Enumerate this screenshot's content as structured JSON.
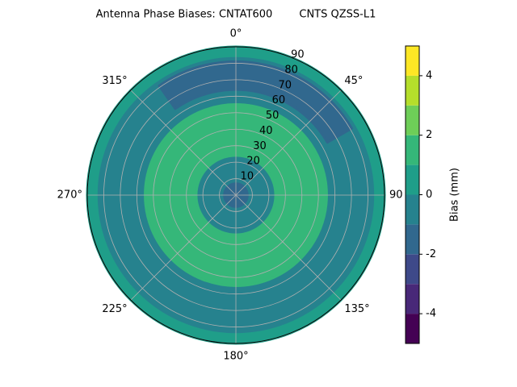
{
  "chart_data": {
    "type": "polar_contour",
    "title": "Antenna Phase Biases: CNTAT600        CNTS QZSS-L1",
    "rlim": [
      0,
      90
    ],
    "rticks": [
      10,
      20,
      30,
      40,
      50,
      60,
      70,
      80,
      90
    ],
    "thetaticks": [
      {
        "value": 0,
        "label": "0°"
      },
      {
        "value": 45,
        "label": "45°"
      },
      {
        "value": 90,
        "label": "90"
      },
      {
        "value": 135,
        "label": "135°"
      },
      {
        "value": 180,
        "label": "180°"
      },
      {
        "value": 225,
        "label": "225°"
      },
      {
        "value": 270,
        "label": "270°"
      },
      {
        "value": 315,
        "label": "315°"
      }
    ],
    "grid": true,
    "levels": [
      -5,
      -4,
      -3,
      -2,
      -1,
      0,
      1,
      2,
      3,
      4,
      5
    ],
    "colors": [
      "#440154",
      "#482878",
      "#3e4989",
      "#31688e",
      "#26828e",
      "#1f9e89",
      "#35b779",
      "#6ece58",
      "#b5de2b",
      "#fde725"
    ],
    "regions": [
      {
        "level": 0,
        "r": [
          0,
          90
        ],
        "theta": [
          0,
          360
        ]
      },
      {
        "level": -1,
        "r": [
          0,
          83
        ],
        "theta": [
          0,
          360
        ]
      },
      {
        "level": -2,
        "r": [
          64,
          81
        ],
        "theta": [
          -35,
          60
        ]
      },
      {
        "level": 1,
        "r": [
          24,
          55
        ],
        "theta": [
          0,
          360
        ]
      },
      {
        "level": -2,
        "r": [
          0,
          7
        ],
        "theta": [
          0,
          360
        ]
      }
    ],
    "colorbar_label": "Bias (mm)",
    "colorbar_ticks": [
      -4,
      -2,
      0,
      2,
      4
    ]
  }
}
